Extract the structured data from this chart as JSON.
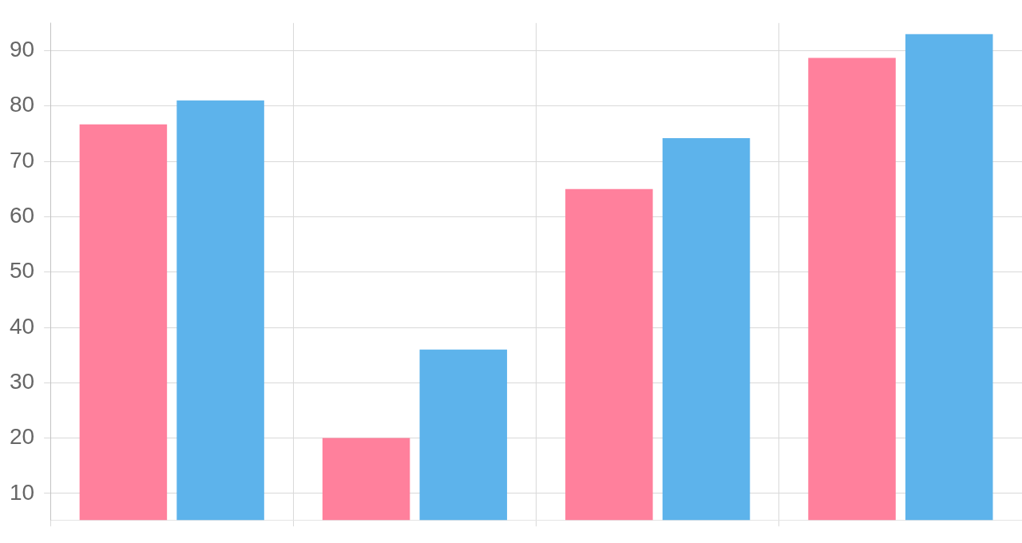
{
  "chart_data": {
    "type": "bar",
    "categories": [
      null,
      null,
      null,
      null
    ],
    "series": [
      {
        "color": "#ff809c",
        "values": [
          76.7,
          20,
          65,
          88.7
        ]
      },
      {
        "color": "#5db3eb",
        "values": [
          81,
          36,
          74.2,
          93
        ]
      }
    ],
    "ylim": [
      5.2,
      95
    ],
    "yticks": [
      10,
      20,
      30,
      40,
      50,
      60,
      70,
      80,
      90
    ],
    "grid": true,
    "tick_labels": "y"
  }
}
